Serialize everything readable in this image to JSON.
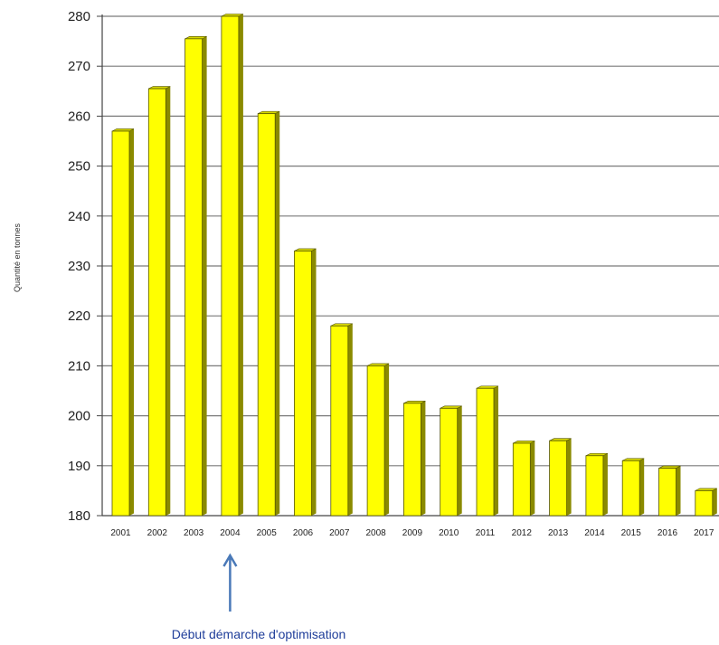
{
  "chart_data": {
    "type": "bar",
    "title": "",
    "xlabel": "",
    "ylabel": "Quantité en tonnes",
    "categories": [
      "2001",
      "2002",
      "2003",
      "2004",
      "2005",
      "2006",
      "2007",
      "2008",
      "2009",
      "2010",
      "2011",
      "2012",
      "2013",
      "2014",
      "2015",
      "2016",
      "2017"
    ],
    "values": [
      257,
      265.5,
      275.5,
      280,
      260.5,
      233,
      218,
      210,
      202.5,
      201.5,
      205.5,
      194.5,
      195,
      192,
      191,
      189.5,
      185
    ],
    "ylim": [
      180,
      280
    ],
    "yticks": [
      180,
      190,
      200,
      210,
      220,
      230,
      240,
      250,
      260,
      270,
      280
    ],
    "grid": true,
    "bar_color": "#ffff00",
    "bar_side_color": "#8a8a00",
    "bar_edge_color": "#555500",
    "annotation": {
      "text": "Début démarche d'optimisation",
      "target_category": "2004",
      "color": "#1f3e9a",
      "arrow_color": "#4a79b8"
    }
  }
}
